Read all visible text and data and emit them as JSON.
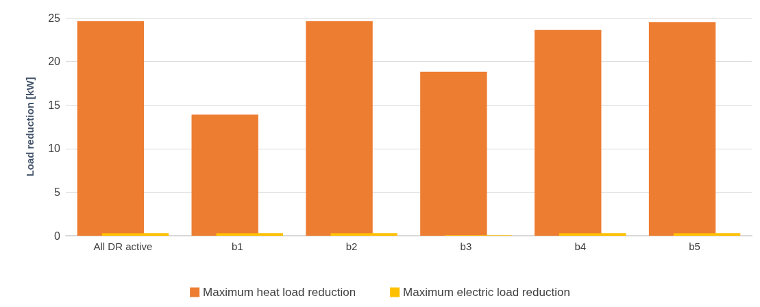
{
  "chart_data": {
    "type": "bar",
    "ylabel": "Load reduction [kW]",
    "categories": [
      "All DR active",
      "b1",
      "b2",
      "b3",
      "b4",
      "b5"
    ],
    "series": [
      {
        "name": "Maximum heat load reduction",
        "color": "#ed7d31",
        "values": [
          24.6,
          13.9,
          24.6,
          18.8,
          23.6,
          24.5
        ]
      },
      {
        "name": "Maximum electric load reduction",
        "color": "#ffc000",
        "values": [
          0.3,
          0.3,
          0.3,
          0.05,
          0.3,
          0.3
        ]
      }
    ],
    "ylim": [
      0,
      25
    ],
    "yticks": [
      0,
      5,
      10,
      15,
      20,
      25
    ],
    "grid": "y",
    "legend": "bottom"
  }
}
